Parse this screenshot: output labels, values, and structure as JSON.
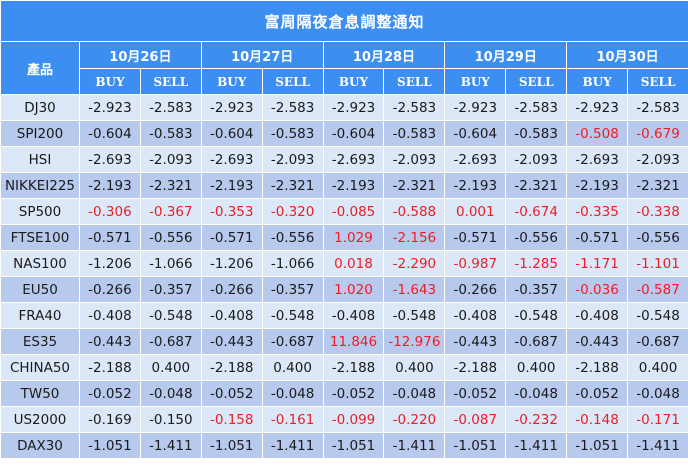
{
  "title": "富周隔夜倉息調整通知",
  "product_header": "產品",
  "dates": [
    "10月26日",
    "10月27日",
    "10月28日",
    "10月29日",
    "10月30日"
  ],
  "buy_label": "BUY",
  "sell_label": "SELL",
  "colors": {
    "header_bg": "#3c8ff0",
    "row_light": "#dce8f8",
    "row_dark": "#b7caee",
    "highlight_red": "#ee1c25",
    "normal_text": "#1a1a1a"
  },
  "rows": [
    {
      "product": "DJ30",
      "cells": [
        {
          "buy": "-2.923",
          "sell": "-2.583"
        },
        {
          "buy": "-2.923",
          "sell": "-2.583"
        },
        {
          "buy": "-2.923",
          "sell": "-2.583"
        },
        {
          "buy": "-2.923",
          "sell": "-2.583"
        },
        {
          "buy": "-2.923",
          "sell": "-2.583"
        }
      ]
    },
    {
      "product": "SPI200",
      "cells": [
        {
          "buy": "-0.604",
          "sell": "-0.583"
        },
        {
          "buy": "-0.604",
          "sell": "-0.583"
        },
        {
          "buy": "-0.604",
          "sell": "-0.583"
        },
        {
          "buy": "-0.604",
          "sell": "-0.583"
        },
        {
          "buy": "-0.508",
          "sell": "-0.679",
          "red": true
        }
      ]
    },
    {
      "product": "HSI",
      "cells": [
        {
          "buy": "-2.693",
          "sell": "-2.093"
        },
        {
          "buy": "-2.693",
          "sell": "-2.093"
        },
        {
          "buy": "-2.693",
          "sell": "-2.093"
        },
        {
          "buy": "-2.693",
          "sell": "-2.093"
        },
        {
          "buy": "-2.693",
          "sell": "-2.093"
        }
      ]
    },
    {
      "product": "NIKKEI225",
      "cells": [
        {
          "buy": "-2.193",
          "sell": "-2.321"
        },
        {
          "buy": "-2.193",
          "sell": "-2.321"
        },
        {
          "buy": "-2.193",
          "sell": "-2.321"
        },
        {
          "buy": "-2.193",
          "sell": "-2.321"
        },
        {
          "buy": "-2.193",
          "sell": "-2.321"
        }
      ]
    },
    {
      "product": "SP500",
      "cells": [
        {
          "buy": "-0.306",
          "sell": "-0.367",
          "red": true
        },
        {
          "buy": "-0.353",
          "sell": "-0.320",
          "red": true
        },
        {
          "buy": "-0.085",
          "sell": "-0.588",
          "red": true
        },
        {
          "buy": "0.001",
          "sell": "-0.674",
          "red": true
        },
        {
          "buy": "-0.335",
          "sell": "-0.338",
          "red": true
        }
      ]
    },
    {
      "product": "FTSE100",
      "cells": [
        {
          "buy": "-0.571",
          "sell": "-0.556"
        },
        {
          "buy": "-0.571",
          "sell": "-0.556"
        },
        {
          "buy": "1.029",
          "sell": "-2.156",
          "red": true
        },
        {
          "buy": "-0.571",
          "sell": "-0.556"
        },
        {
          "buy": "-0.571",
          "sell": "-0.556"
        }
      ]
    },
    {
      "product": "NAS100",
      "cells": [
        {
          "buy": "-1.206",
          "sell": "-1.066"
        },
        {
          "buy": "-1.206",
          "sell": "-1.066"
        },
        {
          "buy": "0.018",
          "sell": "-2.290",
          "red": true
        },
        {
          "buy": "-0.987",
          "sell": "-1.285",
          "red": true
        },
        {
          "buy": "-1.171",
          "sell": "-1.101",
          "red": true
        }
      ]
    },
    {
      "product": "EU50",
      "cells": [
        {
          "buy": "-0.266",
          "sell": "-0.357"
        },
        {
          "buy": "-0.266",
          "sell": "-0.357"
        },
        {
          "buy": "1.020",
          "sell": "-1.643",
          "red": true
        },
        {
          "buy": "-0.266",
          "sell": "-0.357"
        },
        {
          "buy": "-0.036",
          "sell": "-0.587",
          "red": true
        }
      ]
    },
    {
      "product": "FRA40",
      "cells": [
        {
          "buy": "-0.408",
          "sell": "-0.548"
        },
        {
          "buy": "-0.408",
          "sell": "-0.548"
        },
        {
          "buy": "-0.408",
          "sell": "-0.548"
        },
        {
          "buy": "-0.408",
          "sell": "-0.548"
        },
        {
          "buy": "-0.408",
          "sell": "-0.548"
        }
      ]
    },
    {
      "product": "ES35",
      "cells": [
        {
          "buy": "-0.443",
          "sell": "-0.687"
        },
        {
          "buy": "-0.443",
          "sell": "-0.687"
        },
        {
          "buy": "11.846",
          "sell": "-12.976",
          "red": true
        },
        {
          "buy": "-0.443",
          "sell": "-0.687"
        },
        {
          "buy": "-0.443",
          "sell": "-0.687"
        }
      ]
    },
    {
      "product": "CHINA50",
      "cells": [
        {
          "buy": "-2.188",
          "sell": "0.400"
        },
        {
          "buy": "-2.188",
          "sell": "0.400"
        },
        {
          "buy": "-2.188",
          "sell": "0.400"
        },
        {
          "buy": "-2.188",
          "sell": "0.400"
        },
        {
          "buy": "-2.188",
          "sell": "0.400"
        }
      ]
    },
    {
      "product": "TW50",
      "cells": [
        {
          "buy": "-0.052",
          "sell": "-0.048"
        },
        {
          "buy": "-0.052",
          "sell": "-0.048"
        },
        {
          "buy": "-0.052",
          "sell": "-0.048"
        },
        {
          "buy": "-0.052",
          "sell": "-0.048"
        },
        {
          "buy": "-0.052",
          "sell": "-0.048"
        }
      ]
    },
    {
      "product": "US2000",
      "cells": [
        {
          "buy": "-0.169",
          "sell": "-0.150"
        },
        {
          "buy": "-0.158",
          "sell": "-0.161",
          "red": true
        },
        {
          "buy": "-0.099",
          "sell": "-0.220",
          "red": true
        },
        {
          "buy": "-0.087",
          "sell": "-0.232",
          "red": true
        },
        {
          "buy": "-0.148",
          "sell": "-0.171",
          "red": true
        }
      ]
    },
    {
      "product": "DAX30",
      "cells": [
        {
          "buy": "-1.051",
          "sell": "-1.411"
        },
        {
          "buy": "-1.051",
          "sell": "-1.411"
        },
        {
          "buy": "-1.051",
          "sell": "-1.411"
        },
        {
          "buy": "-1.051",
          "sell": "-1.411"
        },
        {
          "buy": "-1.051",
          "sell": "-1.411"
        }
      ]
    }
  ]
}
